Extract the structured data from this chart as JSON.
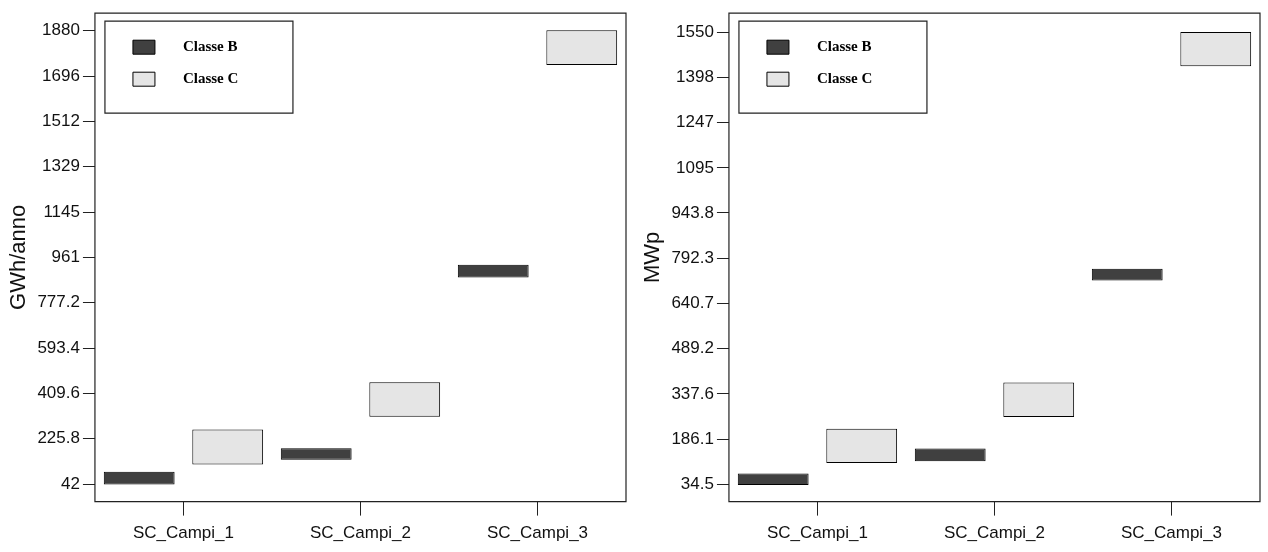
{
  "chart_data": [
    {
      "type": "bar",
      "ylabel": "GWh/anno",
      "categories": [
        "SC_Campi_1",
        "SC_Campi_2",
        "SC_Campi_3"
      ],
      "ylim": [
        -29,
        1951
      ],
      "yticks": [
        42,
        225.8,
        409.6,
        593.4,
        777.2,
        961,
        1145,
        1329,
        1512,
        1696,
        1880
      ],
      "grid": false,
      "legend": "top left",
      "series": [
        {
          "name": "Classe B",
          "color": "#404040",
          "base": [
            40,
            141,
            880
          ],
          "values": [
            52,
            46,
            51
          ]
        },
        {
          "name": "Classe C",
          "color": "#e5e5e5",
          "base": [
            121,
            315,
            1741
          ],
          "values": [
            142,
            140,
            141
          ]
        }
      ]
    },
    {
      "type": "bar",
      "ylabel": "MWp",
      "categories": [
        "SC_Campi_1",
        "SC_Campi_2",
        "SC_Campi_3"
      ],
      "ylim": [
        -23,
        1613
      ],
      "yticks": [
        34.5,
        186.1,
        337.6,
        489.2,
        640.7,
        792.3,
        943.8,
        1095,
        1247,
        1398,
        1550
      ],
      "grid": false,
      "legend": "top left",
      "series": [
        {
          "name": "Classe B",
          "color": "#404040",
          "base": [
            33,
            112,
            718
          ],
          "values": [
            38,
            43,
            39
          ]
        },
        {
          "name": "Classe C",
          "color": "#e5e5e5",
          "base": [
            106,
            260,
            1435
          ],
          "values": [
            115,
            116,
            115
          ]
        }
      ]
    }
  ]
}
